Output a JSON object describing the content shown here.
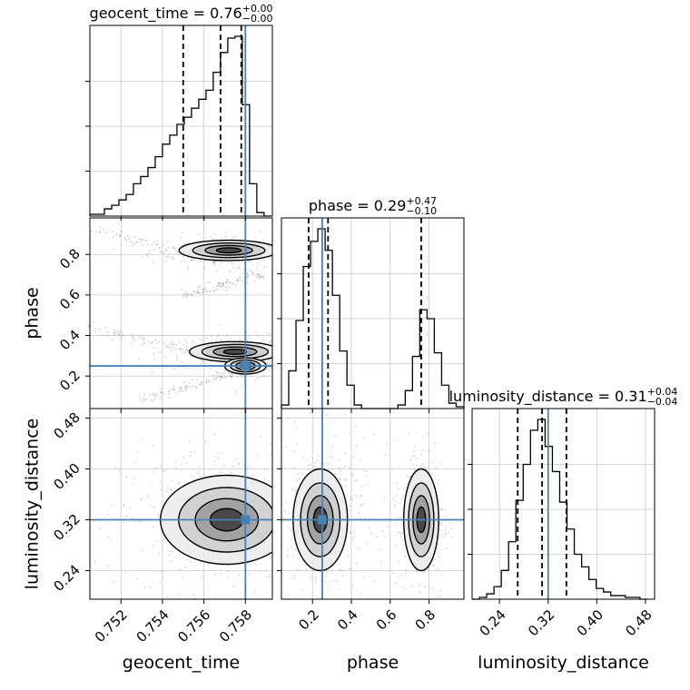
{
  "chart_data": {
    "type": "corner",
    "parameters": [
      {
        "key": "geocent_time",
        "axis_label": "geocent_time",
        "title_name": "geocent_time",
        "title_value": "0.76",
        "title_plus": "+0.00",
        "title_minus": "−0.00",
        "range": [
          0.7505,
          0.7593
        ],
        "ticks": [
          0.752,
          0.754,
          0.756,
          0.758
        ],
        "tick_labels": [
          "0.752",
          "0.754",
          "0.756",
          "0.758"
        ],
        "truth": 0.758,
        "quantile_lines": [
          0.755,
          0.7568,
          0.7578
        ],
        "histogram": {
          "edges": [
            0.7505,
            0.75085,
            0.7512,
            0.75155,
            0.7519,
            0.75225,
            0.7526,
            0.75295,
            0.7533,
            0.75365,
            0.754,
            0.75435,
            0.7547,
            0.75505,
            0.7554,
            0.75575,
            0.7561,
            0.75645,
            0.7568,
            0.75715,
            0.7575,
            0.75785,
            0.7582,
            0.75855,
            0.7589,
            0.75925
          ],
          "counts": [
            0.01,
            0.01,
            0.04,
            0.06,
            0.09,
            0.12,
            0.18,
            0.22,
            0.27,
            0.33,
            0.4,
            0.45,
            0.51,
            0.55,
            0.6,
            0.65,
            0.7,
            0.8,
            0.91,
            0.99,
            1.0,
            0.62,
            0.18,
            0.02,
            0.0
          ]
        }
      },
      {
        "key": "phase",
        "axis_label": "phase",
        "title_name": "phase",
        "title_value": "0.29",
        "title_plus": "+0.47",
        "title_minus": "−0.10",
        "range": [
          0.04,
          0.98
        ],
        "ticks": [
          0.2,
          0.4,
          0.6,
          0.8
        ],
        "tick_labels": [
          "0.2",
          "0.4",
          "0.6",
          "0.8"
        ],
        "truth": 0.25,
        "quantile_lines": [
          0.18,
          0.28,
          0.76
        ],
        "histogram": {
          "edges": [
            0.04,
            0.0775,
            0.115,
            0.1525,
            0.19,
            0.2275,
            0.265,
            0.3025,
            0.34,
            0.3775,
            0.415,
            0.4525,
            0.49,
            0.5275,
            0.565,
            0.6025,
            0.64,
            0.6775,
            0.715,
            0.7525,
            0.79,
            0.8275,
            0.865,
            0.9025,
            0.94,
            0.98
          ],
          "counts": [
            0.02,
            0.21,
            0.49,
            0.79,
            0.93,
            1.0,
            0.88,
            0.63,
            0.32,
            0.13,
            0.02,
            0.0,
            0.0,
            0.0,
            0.0,
            0.0,
            0.02,
            0.1,
            0.29,
            0.55,
            0.5,
            0.31,
            0.13,
            0.03,
            0.01
          ]
        }
      },
      {
        "key": "luminosity_distance",
        "axis_label": "luminosity_distance",
        "title_name": "luminosity_distance",
        "title_value": "0.31",
        "title_plus": "+0.04",
        "title_minus": "−0.04",
        "range": [
          0.195,
          0.495
        ],
        "ticks": [
          0.24,
          0.32,
          0.4,
          0.48
        ],
        "tick_labels": [
          "0.24",
          "0.32",
          "0.40",
          "0.48"
        ],
        "truth": 0.32,
        "quantile_lines": [
          0.27,
          0.31,
          0.35
        ],
        "histogram": {
          "edges": [
            0.195,
            0.207,
            0.219,
            0.231,
            0.243,
            0.255,
            0.267,
            0.279,
            0.291,
            0.303,
            0.315,
            0.327,
            0.339,
            0.351,
            0.363,
            0.375,
            0.387,
            0.399,
            0.411,
            0.423,
            0.435,
            0.447,
            0.459,
            0.471,
            0.483
          ],
          "counts": [
            0.0,
            0.01,
            0.03,
            0.07,
            0.16,
            0.32,
            0.55,
            0.75,
            0.94,
            1.0,
            0.85,
            0.71,
            0.54,
            0.39,
            0.25,
            0.18,
            0.11,
            0.06,
            0.04,
            0.02,
            0.02,
            0.01,
            0.01,
            0.0
          ]
        }
      }
    ],
    "pairs": [
      {
        "x": "geocent_time",
        "y": "phase"
      },
      {
        "x": "geocent_time",
        "y": "luminosity_distance"
      },
      {
        "x": "phase",
        "y": "luminosity_distance"
      }
    ],
    "contour_levels": 4,
    "grid": true,
    "colors": {
      "truth": "#4682b4",
      "lines": "#000000",
      "grid": "#c8c8c8",
      "scatter": "#808080"
    }
  }
}
